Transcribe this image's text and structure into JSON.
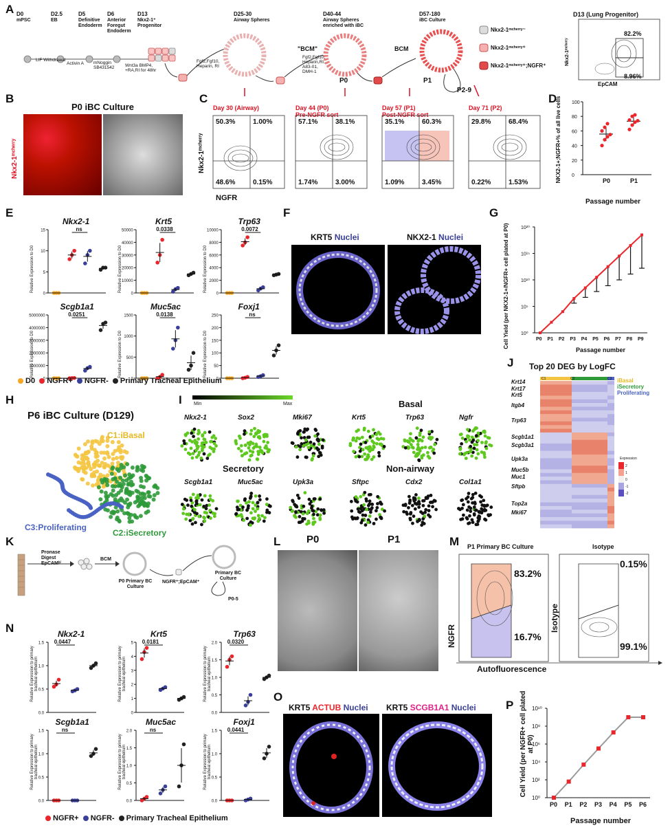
{
  "panels": {
    "A": "A",
    "B": "B",
    "C": "C",
    "D": "D",
    "E": "E",
    "F": "F",
    "G": "G",
    "H": "H",
    "I": "I",
    "J": "J",
    "K": "K",
    "L": "L",
    "M": "M",
    "N": "N",
    "O": "O",
    "P": "P"
  },
  "colors": {
    "d0": "#f5a623",
    "ngfr_pos": "#e8262b",
    "ngfr_neg": "#3a3f99",
    "primary": "#222222",
    "basal": "#f4c542",
    "secretory": "#2e9a3a",
    "proliferating": "#4a62c4",
    "line_red": "#e8262b",
    "line_gray": "#9a9a9a"
  },
  "A": {
    "timeline": [
      {
        "day": "D0",
        "label": "mPSC"
      },
      {
        "day": "D2.5",
        "label": "EB"
      },
      {
        "day": "D5",
        "label": "Definitive Endoderm"
      },
      {
        "day": "D6",
        "label": "Anterior Foregut Endoderm"
      },
      {
        "day": "D13",
        "label": "Nkx2-1⁺ Progenitor"
      },
      {
        "day": "D25-30",
        "label": "Airway Spheres"
      },
      {
        "day": "D40-44",
        "label": "Airway Spheres enriched with iBC"
      },
      {
        "day": "D57-180",
        "label": "iBC Culture"
      }
    ],
    "steps": [
      "LIF Withdrawal",
      "Activin A",
      "mNoggin SB431542",
      "Wnt3a BMP4, +RA,RI for 48hr",
      "Fgf2,Fgf10, Heparin, RI"
    ],
    "bcm_label": "\"BCM\"",
    "bcm_factors": "Fgf2,Fgf10, Heparin,RI, A83-01, DMH-1",
    "bcm2": "BCM",
    "p0": "P0",
    "p1": "P1",
    "p2_9": "P2-9",
    "legend": [
      "Nkx2-1ᵐᶜʰᵉʳʳʸ⁻",
      "Nkx2-1ᵐᶜʰᵉʳʳʸ⁺",
      "Nkx2-1ᵐᶜʰᵉʳʳʸ⁺;NGFR⁺"
    ],
    "flow_title": "D13 (Lung Progenitor)",
    "flow_y": "Nkx2-1ᵐᶜʰᵉʳʳʸ",
    "flow_x": "EpCAM",
    "flow_top": "82.2%",
    "flow_bottom": "8.96%"
  },
  "B": {
    "title": "P0 iBC Culture",
    "ylabel": "Nkx2-1ᵐᶜʰᵉʳʳʸ"
  },
  "C": {
    "ylabel": "Nkx2-1ᵐᶜʰᵉʳʳʸ",
    "xlabel": "NGFR",
    "plots": [
      {
        "title": "Day 30 (Airway)",
        "sub": "",
        "q": [
          "50.3%",
          "1.00%",
          "48.6%",
          "0.15%"
        ]
      },
      {
        "title": "Day 44 (P0)",
        "sub": "Pre-NGFR sort",
        "q": [
          "57.1%",
          "38.1%",
          "1.74%",
          "3.00%"
        ]
      },
      {
        "title": "Day 57 (P1)",
        "sub": "Post-NGFR sort",
        "q": [
          "35.1%",
          "60.3%",
          "1.09%",
          "3.45%"
        ]
      },
      {
        "title": "Day 71 (P2)",
        "sub": "",
        "q": [
          "29.8%",
          "68.4%",
          "0.22%",
          "1.53%"
        ]
      }
    ]
  },
  "D": {
    "ylabel": "NKX2-1+;NGFR+% of all live cells",
    "xlabel": "Passage number",
    "ticks": [
      "0",
      "20",
      "40",
      "60",
      "80",
      "100"
    ],
    "cats": [
      "P0",
      "P1"
    ]
  },
  "E": {
    "ylabel": "Relative Expression to D0",
    "plots": [
      {
        "gene": "Nkx2-1",
        "p": "ns",
        "ticks": [
          "0",
          "5",
          "10",
          "15"
        ]
      },
      {
        "gene": "Krt5",
        "p": "0.0338",
        "ticks": [
          "0",
          "10000",
          "20000",
          "30000",
          "40000",
          "50000"
        ]
      },
      {
        "gene": "Trp63",
        "p": "0.0072",
        "ticks": [
          "0",
          "2000",
          "4000",
          "6000",
          "8000",
          "10000"
        ]
      },
      {
        "gene": "Scgb1a1",
        "p": "0.0251",
        "ticks": [
          "0",
          "1000000",
          "2000000",
          "3000000",
          "4000000",
          "5000000"
        ]
      },
      {
        "gene": "Muc5ac",
        "p": "0.0138",
        "ticks": [
          "0",
          "500",
          "1000",
          "1500"
        ]
      },
      {
        "gene": "Foxj1",
        "p": "ns",
        "ticks": [
          "0",
          "50",
          "100",
          "150",
          "200",
          "250"
        ]
      }
    ],
    "legend": [
      "D0",
      "NGFR+",
      "NGFR-",
      "Primary Tracheal Epithelium"
    ]
  },
  "F": {
    "left_a": "KRT5",
    "left_b": "Nuclei",
    "right_a": "NKX2-1",
    "right_b": "Nuclei"
  },
  "G": {
    "ylabel": "Cell Yield (per NKX2-1+/NGFR+ cell plated at P0)",
    "xlabel": "Passage number",
    "cats": [
      "P0",
      "P1",
      "P2",
      "P3",
      "P4",
      "P5",
      "P6",
      "P7",
      "P8",
      "P9"
    ],
    "ticks": [
      "10⁰",
      "10⁵",
      "10¹⁰",
      "10¹⁵",
      "10²⁰"
    ]
  },
  "chart_data": [
    {
      "type": "scatter",
      "panel": "D",
      "title": "",
      "ylabel": "NKX2-1+;NGFR+% of all live cells",
      "xlabel": "Passage number",
      "categories": [
        "P0",
        "P1"
      ],
      "ylim": [
        0,
        100
      ],
      "series": [
        {
          "name": "P0",
          "values": [
            40,
            48,
            52,
            55,
            60,
            65,
            70
          ]
        },
        {
          "name": "P1",
          "values": [
            62,
            68,
            72,
            74,
            75,
            80,
            82
          ]
        }
      ]
    },
    {
      "type": "line",
      "panel": "G",
      "title": "",
      "ylabel": "Cell Yield (per NKX2-1+/NGFR+ cell plated at P0)",
      "xlabel": "Passage number",
      "categories": [
        "P0",
        "P1",
        "P2",
        "P3",
        "P4",
        "P5",
        "P6",
        "P7",
        "P8",
        "P9"
      ],
      "log_scale": true,
      "ylim": [
        1,
        1e+20
      ],
      "values_log10": [
        0,
        2,
        4,
        6.5,
        8.5,
        10.5,
        12.5,
        14.5,
        16.5,
        18.5
      ]
    },
    {
      "type": "line",
      "panel": "P",
      "title": "",
      "ylabel": "Cell Yield (per NGFR+ cell plated at P0)",
      "xlabel": "Passage number",
      "categories": [
        "P0",
        "P1",
        "P2",
        "P3",
        "P4",
        "P5",
        "P6"
      ],
      "log_scale": true,
      "ylim": [
        1,
        10000000000.0
      ],
      "values_log10": [
        0,
        1.8,
        3.7,
        5.5,
        7.3,
        9.0,
        9.0
      ]
    }
  ],
  "H": {
    "title": "P6 iBC Culture (D129)",
    "c1": "C1:iBasal",
    "c2": "C2:iSecretory",
    "c3": "C3:Proliferating"
  },
  "I": {
    "min": "Min",
    "max": "Max",
    "basal": "Basal",
    "secretory": "Secretory",
    "nonairway": "Non-airway",
    "row1": [
      "Nkx2-1",
      "Sox2",
      "Mki67",
      "Krt5",
      "Trp63",
      "Ngfr"
    ],
    "row2": [
      "Scgb1a1",
      "Muc5ac",
      "Upk3a",
      "Sftpc",
      "Cdx2",
      "Col1a1"
    ]
  },
  "J": {
    "title": "Top 20 DEG by LogFC",
    "genes": [
      "Krt14",
      "Krt17",
      "Krt5",
      "Itgb4",
      "Trp63",
      "Scgb1a1",
      "Scgb3a1",
      "Upk3a",
      "Muc5b",
      "Muc1",
      "Sftpb",
      "Top2a",
      "Mki67"
    ],
    "legend": [
      "iBasal",
      "iSecretory",
      "Proliferating"
    ],
    "cols": [
      "C1",
      "C2",
      "C3"
    ],
    "expr": "Expression",
    "scale": [
      "2",
      "1",
      "0",
      "-1",
      "-2"
    ]
  },
  "K": {
    "steps": [
      "Pronase Digest EpCAMʰⁱ",
      "BCM",
      "P0 Primary BC Culture",
      "NGFR⁺;EpCAM⁺",
      "Primary BC Culture",
      "P0-5"
    ]
  },
  "L": {
    "p0": "P0",
    "p1": "P1"
  },
  "M": {
    "left_title": "P1 Primary BC Culture",
    "right_title": "Isotype",
    "top": "83.2%",
    "bottom": "16.7%",
    "iso_top": "0.15%",
    "iso_bottom": "99.1%",
    "ylabel": "NGFR",
    "ylabel2": "Isotype",
    "xlabel": "Autofluorescence"
  },
  "N": {
    "ylabel": "Relative Expression to primary tracheal epithelium",
    "plots": [
      {
        "gene": "Nkx2-1",
        "p": "0.0447",
        "ticks": [
          "0.0",
          "0.5",
          "1.0",
          "1.5"
        ]
      },
      {
        "gene": "Krt5",
        "p": "0.0181",
        "ticks": [
          "0",
          "1",
          "2",
          "3",
          "4",
          "5"
        ]
      },
      {
        "gene": "Trp63",
        "p": "0.0320",
        "ticks": [
          "0.0",
          "0.5",
          "1.0",
          "1.5",
          "2.0"
        ]
      },
      {
        "gene": "Scgb1a1",
        "p": "ns",
        "ticks": [
          "0.0",
          "0.5",
          "1.0",
          "1.5"
        ]
      },
      {
        "gene": "Muc5ac",
        "p": "ns",
        "ticks": [
          "0.0",
          "0.5",
          "1.0",
          "1.5",
          "2.0"
        ]
      },
      {
        "gene": "Foxj1",
        "p": "0.0441",
        "ticks": [
          "0.0",
          "0.5",
          "1.0",
          "1.5"
        ]
      }
    ],
    "legend": [
      "NGFR+",
      "NGFR-",
      "Primary Tracheal Epithelium"
    ]
  },
  "O": {
    "l1": "KRT5",
    "l2": "ACTUB",
    "l3": "Nuclei",
    "r1": "KRT5",
    "r2": "SCGB1A1",
    "r3": "Nuclei"
  },
  "P": {
    "ylabel": "Cell Yield (per NGFR+ cell plated at P0)",
    "xlabel": "Passage number",
    "cats": [
      "P0",
      "P1",
      "P2",
      "P3",
      "P4",
      "P5",
      "P6"
    ],
    "ticks": [
      "10⁰",
      "10²",
      "10⁴",
      "10⁶",
      "10⁸",
      "10¹⁰"
    ]
  }
}
